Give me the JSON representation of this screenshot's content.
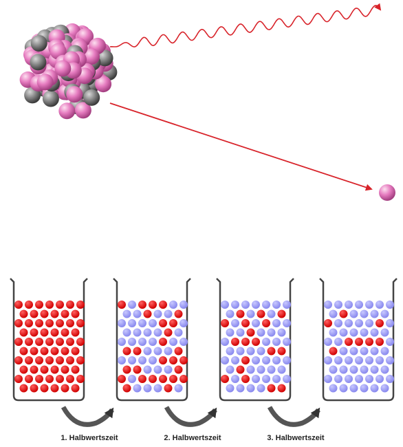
{
  "labels": [
    "1. Halbwertszeit",
    "2. Halbwertszeit",
    "3. Halbwertszeit"
  ]
}
